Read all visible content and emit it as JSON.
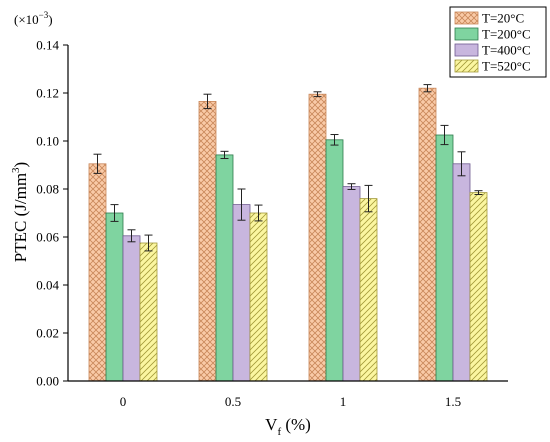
{
  "chart_data": {
    "type": "bar",
    "title": "",
    "scale_note": "(×10",
    "scale_exp": "−3",
    "scale_close": ")",
    "ylabel_main": "PTEC (J/mm",
    "ylabel_sup": "3",
    "ylabel_close": ")",
    "xlabel_main": "V",
    "xlabel_sub": "f",
    "xlabel_rest": " (%)",
    "categories": [
      "0",
      "0.5",
      "1",
      "1.5"
    ],
    "ylim": [
      0,
      0.14
    ],
    "yticks": [
      "0.00",
      "0.02",
      "0.04",
      "0.06",
      "0.08",
      "0.10",
      "0.12",
      "0.14"
    ],
    "grid": false,
    "legend_position": "top-right",
    "series": [
      {
        "name": "T=20°C",
        "color": "#f9caa7",
        "stroke": "#c8875a",
        "pattern": "crosshatch",
        "values": [
          0.0905,
          0.1165,
          0.1195,
          0.122
        ],
        "errors": [
          0.004,
          0.003,
          0.001,
          0.0015
        ]
      },
      {
        "name": "T=200°C",
        "color": "#7fd4a0",
        "stroke": "#2f7a4c",
        "pattern": "none",
        "values": [
          0.07,
          0.0942,
          0.1005,
          0.1025
        ],
        "errors": [
          0.0035,
          0.0015,
          0.0022,
          0.004
        ]
      },
      {
        "name": "T=400°C",
        "color": "#c8b6de",
        "stroke": "#6f5a90",
        "pattern": "none",
        "values": [
          0.0605,
          0.0735,
          0.081,
          0.0905
        ],
        "errors": [
          0.0025,
          0.0065,
          0.0012,
          0.005
        ]
      },
      {
        "name": "T=520°C",
        "color": "#fbf6a0",
        "stroke": "#a39a3a",
        "pattern": "hatch",
        "values": [
          0.0575,
          0.07,
          0.076,
          0.0785
        ],
        "errors": [
          0.0033,
          0.0033,
          0.0055,
          0.0008
        ]
      }
    ]
  }
}
